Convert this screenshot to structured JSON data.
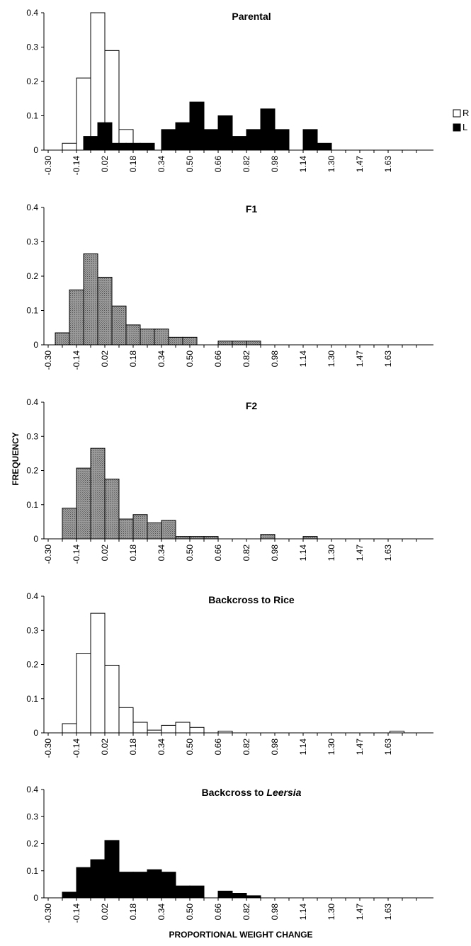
{
  "figure": {
    "ylabel": "FREQUENCY",
    "xlabel": "PROPORTIONAL  WEIGHT CHANGE"
  },
  "colors": {
    "white_bar": "#ffffff",
    "black_bar": "#000000",
    "gray_bar": "#8f8f8f",
    "axis": "#000000"
  },
  "chart_data": [
    {
      "type": "bar",
      "title": "Parental",
      "title_italic": "",
      "xlabel": "",
      "ylabel": "",
      "yticks": [
        "0",
        "0.1",
        "0.2",
        "0.3",
        "0.4"
      ],
      "ylim": [
        0,
        0.4
      ],
      "x_tick_labels": [
        "-0.30",
        "-0.14",
        "0.02",
        "0.18",
        "0.34",
        "0.50",
        "0.66",
        "0.82",
        "0.98",
        "1.14",
        "1.30",
        "1.47",
        "1.63"
      ],
      "legend": {
        "position": "right",
        "entries": [
          {
            "label": "R",
            "style": "white"
          },
          {
            "label": "L",
            "style": "black"
          }
        ]
      },
      "series": [
        {
          "name": "R",
          "style": "white",
          "x": [
            -0.22,
            -0.14,
            -0.06,
            0.02,
            0.1,
            0.74
          ],
          "values": [
            0.02,
            0.21,
            0.4,
            0.29,
            0.06,
            0.02
          ]
        },
        {
          "name": "L",
          "style": "black",
          "x": [
            -0.1,
            -0.02,
            0.06,
            0.14,
            0.22,
            0.34,
            0.42,
            0.5,
            0.58,
            0.66,
            0.74,
            0.82,
            0.9,
            0.98,
            1.14,
            1.22
          ],
          "values": [
            0.04,
            0.08,
            0.02,
            0.02,
            0.02,
            0.06,
            0.08,
            0.14,
            0.06,
            0.1,
            0.04,
            0.06,
            0.12,
            0.06,
            0.06,
            0.02
          ]
        }
      ]
    },
    {
      "type": "bar",
      "title": "F1",
      "title_italic": "",
      "xlabel": "",
      "ylabel": "",
      "yticks": [
        "0",
        "0.1",
        "0.2",
        "0.3",
        "0.4"
      ],
      "ylim": [
        0,
        0.4
      ],
      "x_tick_labels": [
        "-0.30",
        "-0.14",
        "0.02",
        "0.18",
        "0.34",
        "0.50",
        "0.66",
        "0.82",
        "0.98",
        "1.14",
        "1.30",
        "1.47",
        "1.63"
      ],
      "series": [
        {
          "name": "",
          "style": "gray",
          "x": [
            -0.26,
            -0.18,
            -0.1,
            -0.02,
            0.06,
            0.14,
            0.22,
            0.3,
            0.38,
            0.46,
            0.66,
            0.74,
            0.82
          ],
          "values": [
            0.035,
            0.16,
            0.265,
            0.197,
            0.113,
            0.058,
            0.046,
            0.046,
            0.022,
            0.022,
            0.011,
            0.011,
            0.011
          ]
        }
      ]
    },
    {
      "type": "bar",
      "title": "F2",
      "title_italic": "",
      "xlabel": "",
      "ylabel": "",
      "yticks": [
        "0",
        "0.1",
        "0.2",
        "0.3",
        "0.4"
      ],
      "ylim": [
        0,
        0.4
      ],
      "x_tick_labels": [
        "-0.30",
        "-0.14",
        "0.02",
        "0.18",
        "0.34",
        "0.50",
        "0.66",
        "0.82",
        "0.98",
        "1.14",
        "1.30",
        "1.47",
        "1.63"
      ],
      "series": [
        {
          "name": "",
          "style": "gray",
          "x": [
            -0.22,
            -0.14,
            -0.06,
            0.02,
            0.1,
            0.18,
            0.26,
            0.34,
            0.42,
            0.5,
            0.58,
            0.9,
            1.14
          ],
          "values": [
            0.09,
            0.207,
            0.265,
            0.175,
            0.058,
            0.071,
            0.047,
            0.054,
            0.007,
            0.007,
            0.007,
            0.013,
            0.007
          ]
        }
      ]
    },
    {
      "type": "bar",
      "title": "Backcross to Rice",
      "title_italic": "",
      "xlabel": "",
      "ylabel": "",
      "yticks": [
        "0",
        "0.1",
        "0.2",
        "0.3",
        "0.4"
      ],
      "ylim": [
        0,
        0.4
      ],
      "x_tick_labels": [
        "-0.30",
        "-0.14",
        "0.02",
        "0.18",
        "0.34",
        "0.50",
        "0.66",
        "0.82",
        "0.98",
        "1.14",
        "1.30",
        "1.47",
        "1.63"
      ],
      "series": [
        {
          "name": "",
          "style": "white",
          "x": [
            -0.22,
            -0.14,
            -0.06,
            0.02,
            0.1,
            0.18,
            0.26,
            0.34,
            0.42,
            0.5,
            0.66,
            1.63
          ],
          "values": [
            0.027,
            0.233,
            0.35,
            0.198,
            0.074,
            0.031,
            0.008,
            0.022,
            0.031,
            0.016,
            0.005,
            0.005
          ]
        }
      ]
    },
    {
      "type": "bar",
      "title": "Backcross to ",
      "title_italic": "Leersia",
      "xlabel": "",
      "ylabel": "",
      "yticks": [
        "0",
        "0.1",
        "0.2",
        "0.3",
        "0.4"
      ],
      "ylim": [
        0,
        0.4
      ],
      "x_tick_labels": [
        "-0.30",
        "-0.14",
        "0.02",
        "0.18",
        "0.34",
        "0.50",
        "0.66",
        "0.82",
        "0.98",
        "1.14",
        "1.30",
        "1.47",
        "1.63"
      ],
      "series": [
        {
          "name": "",
          "style": "black",
          "x": [
            -0.22,
            -0.14,
            -0.06,
            0.02,
            0.1,
            0.18,
            0.26,
            0.34,
            0.42,
            0.5,
            0.66,
            0.74,
            0.82
          ],
          "values": [
            0.021,
            0.112,
            0.141,
            0.212,
            0.095,
            0.095,
            0.104,
            0.095,
            0.044,
            0.044,
            0.025,
            0.017,
            0.008
          ]
        }
      ]
    }
  ]
}
